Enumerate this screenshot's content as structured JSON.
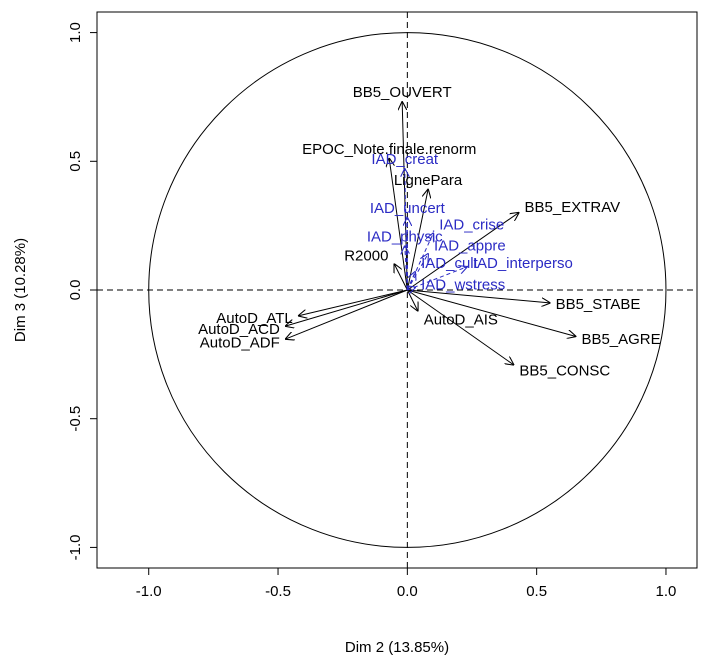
{
  "chart_data": {
    "type": "scatter",
    "subtype": "pca-correlation-circle",
    "xlabel": "Dim 2 (13.85%)",
    "ylabel": "Dim 3 (10.28%)",
    "xlim": [
      -1.2,
      1.12
    ],
    "ylim": [
      -1.08,
      1.08
    ],
    "xticks": [
      -1.0,
      -0.5,
      0.0,
      0.5,
      1.0
    ],
    "xtick_labels": [
      "-1.0",
      "-0.5",
      "0.0",
      "0.5",
      "1.0"
    ],
    "yticks": [
      -1.0,
      -0.5,
      0.0,
      0.5,
      1.0
    ],
    "ytick_labels": [
      "-1.0",
      "-0.5",
      "0.0",
      "0.5",
      "1.0"
    ],
    "grid": false,
    "unit_circle": true,
    "colors": {
      "active": "#000000",
      "supplementary": "#2b2bc4"
    },
    "series": [
      {
        "role": "active",
        "line_style": "solid",
        "vectors": [
          {
            "label": "BB5_OUVERT",
            "x": -0.02,
            "y": 0.73
          },
          {
            "label": "EPOC_Note.finale.renorm",
            "x": -0.07,
            "y": 0.51
          },
          {
            "label": "LignePara",
            "x": 0.08,
            "y": 0.39
          },
          {
            "label": "BB5_EXTRAV",
            "x": 0.43,
            "y": 0.3
          },
          {
            "label": "R2000",
            "x": -0.05,
            "y": 0.1
          },
          {
            "label": "BB5_STABE",
            "x": 0.55,
            "y": -0.05
          },
          {
            "label": "BB5_AGRE",
            "x": 0.65,
            "y": -0.18
          },
          {
            "label": "BB5_CONSC",
            "x": 0.41,
            "y": -0.29
          },
          {
            "label": "AutoD_AIS",
            "x": 0.04,
            "y": -0.08
          },
          {
            "label": "AutoD_ATL",
            "x": -0.42,
            "y": -0.1
          },
          {
            "label": "AutoD_ACD",
            "x": -0.47,
            "y": -0.14
          },
          {
            "label": "AutoD_ADF",
            "x": -0.47,
            "y": -0.19
          }
        ]
      },
      {
        "role": "supplementary",
        "line_style": "dashed",
        "vectors": [
          {
            "label": "IAD_creat",
            "x": -0.01,
            "y": 0.47
          },
          {
            "label": "IAD_uncert",
            "x": 0.0,
            "y": 0.28
          },
          {
            "label": "IAD_physic",
            "x": -0.01,
            "y": 0.17
          },
          {
            "label": "IAD_crise",
            "x": 0.1,
            "y": 0.22
          },
          {
            "label": "IAD_appre",
            "x": 0.08,
            "y": 0.14
          },
          {
            "label": "IAD_cult",
            "x": 0.03,
            "y": 0.07
          },
          {
            "label": "IAD_interperso",
            "x": 0.23,
            "y": 0.09
          },
          {
            "label": "IAD_wstress",
            "x": 0.03,
            "y": 0.01
          }
        ]
      }
    ]
  }
}
